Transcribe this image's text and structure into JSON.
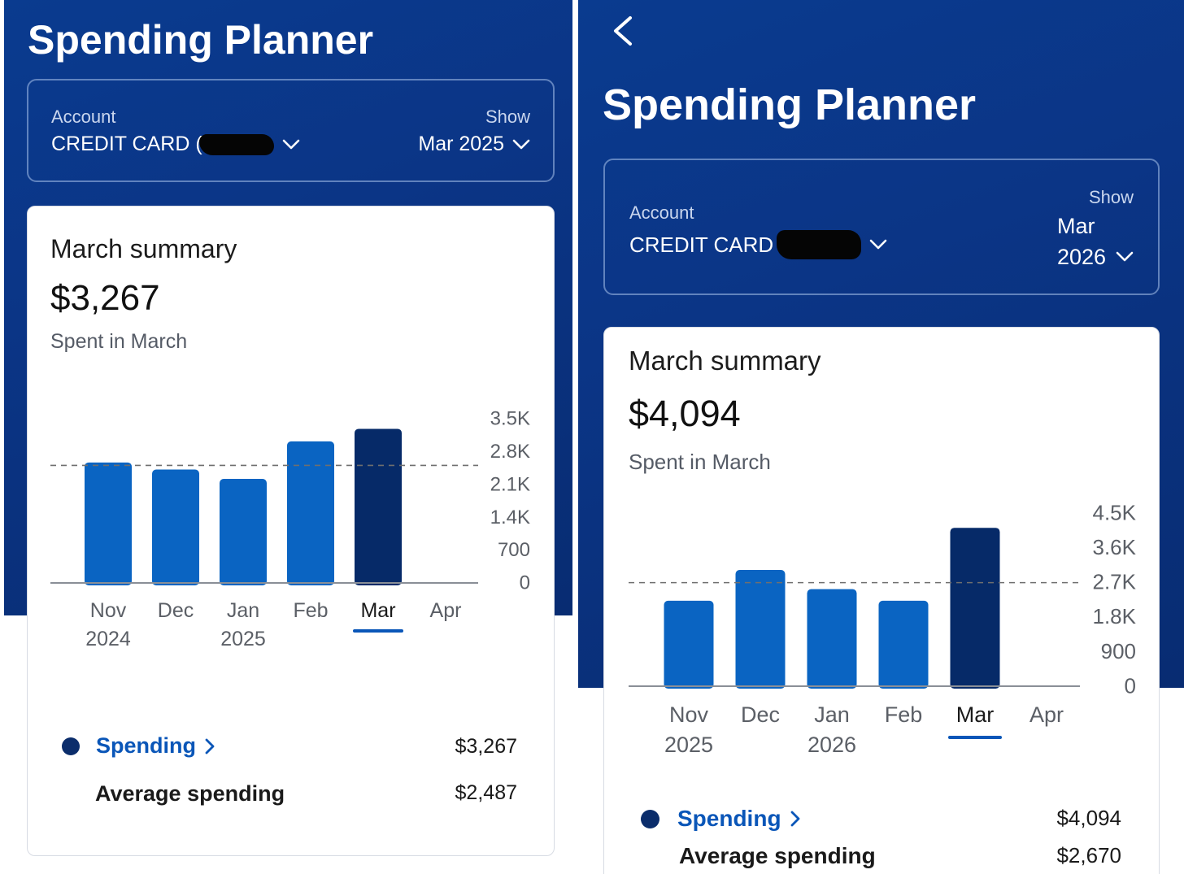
{
  "colors": {
    "header_bg": "#0a3b8f",
    "bar": "#0a64c2",
    "bar_selected": "#062a68",
    "link": "#0a56b8",
    "legend_dot": "#0b2d6b"
  },
  "left": {
    "title": "Spending Planner",
    "account_label": "Account",
    "account_value": "CREDIT CARD (",
    "show_label": "Show",
    "show_value": "Mar 2025",
    "summary_title": "March summary",
    "amount": "$3,267",
    "spent_label": "Spent in March",
    "spending_label": "Spending",
    "spending_value": "$3,267",
    "average_label": "Average spending",
    "average_value": "$2,487",
    "icons": [
      "account-chevron-down-icon",
      "show-chevron-down-icon",
      "spending-chevron-right-icon",
      "legend-dot-icon"
    ]
  },
  "right": {
    "title": "Spending Planner",
    "account_label": "Account",
    "account_value": "CREDIT CARD",
    "show_label": "Show",
    "show_month": "Mar",
    "show_year": "2026",
    "summary_title": "March summary",
    "amount": "$4,094",
    "spent_label": "Spent in March",
    "spending_label": "Spending",
    "spending_value": "$4,094",
    "average_label": "Average spending",
    "average_value": "$2,670",
    "icons": [
      "back-chevron-left-icon",
      "account-chevron-down-icon",
      "show-chevron-down-icon",
      "spending-chevron-right-icon",
      "legend-dot-icon"
    ]
  },
  "chart_data": [
    {
      "type": "bar",
      "categories": [
        "Nov 2024",
        "Dec",
        "Jan 2025",
        "Feb",
        "Mar",
        "Apr"
      ],
      "category_lines": [
        [
          "Nov",
          "2024"
        ],
        [
          "Dec"
        ],
        [
          "Jan",
          "2025"
        ],
        [
          "Feb"
        ],
        [
          "Mar"
        ],
        [
          "Apr"
        ]
      ],
      "values": [
        2550,
        2400,
        2200,
        3000,
        3267,
        null
      ],
      "selected": "Mar",
      "average": 2487,
      "yticks": [
        0,
        700,
        1400,
        2100,
        2800,
        3500
      ],
      "ytick_labels": [
        "0",
        "700",
        "1.4K",
        "2.1K",
        "2.8K",
        "3.5K"
      ],
      "ylim": [
        0,
        3500
      ],
      "grid": false,
      "average_line": "dashed"
    },
    {
      "type": "bar",
      "categories": [
        "Nov 2025",
        "Dec",
        "Jan 2026",
        "Feb",
        "Mar",
        "Apr"
      ],
      "category_lines": [
        [
          "Nov",
          "2025"
        ],
        [
          "Dec"
        ],
        [
          "Jan",
          "2026"
        ],
        [
          "Feb"
        ],
        [
          "Mar"
        ],
        [
          "Apr"
        ]
      ],
      "values": [
        2200,
        3000,
        2500,
        2200,
        4094,
        null
      ],
      "selected": "Mar",
      "average": 2670,
      "yticks": [
        0,
        900,
        1800,
        2700,
        3600,
        4500
      ],
      "ytick_labels": [
        "0",
        "900",
        "1.8K",
        "2.7K",
        "3.6K",
        "4.5K"
      ],
      "ylim": [
        0,
        4500
      ],
      "grid": false,
      "average_line": "dashed"
    }
  ]
}
